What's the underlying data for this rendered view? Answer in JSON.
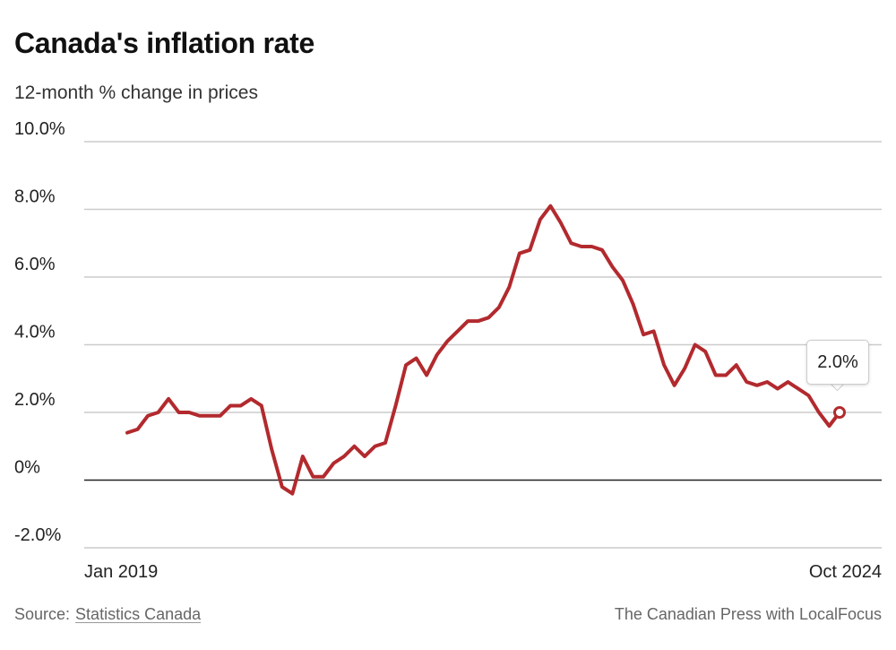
{
  "header": {
    "title": "Canada's inflation rate",
    "subtitle": "12-month % change in prices"
  },
  "footer": {
    "source_label": "Source:",
    "source_name": "Statistics Canada",
    "credit": "The Canadian Press with LocalFocus"
  },
  "colors": {
    "line": "#b22a2e",
    "grid": "#cccccc",
    "zero_line": "#222222",
    "text": "#222222"
  },
  "chart_data": {
    "type": "line",
    "title": "Canada's inflation rate",
    "subtitle": "12-month % change in prices",
    "xlabel": "",
    "ylabel": "",
    "x_tick_labels": [
      "Jan 2019",
      "Oct 2024"
    ],
    "y_ticks": [
      {
        "value": -2,
        "label": "-2.0%"
      },
      {
        "value": 0,
        "label": "0%"
      },
      {
        "value": 2,
        "label": "2.0%"
      },
      {
        "value": 4,
        "label": "4.0%"
      },
      {
        "value": 6,
        "label": "6.0%"
      },
      {
        "value": 8,
        "label": "8.0%"
      },
      {
        "value": 10,
        "label": "10.0%"
      }
    ],
    "ylim": [
      -2,
      10
    ],
    "grid": true,
    "annotation": {
      "label": "2.0%",
      "x": "Oct 2024",
      "value": 2.0
    },
    "series": [
      {
        "x": [
          "Jan 2019",
          "Feb 2019",
          "Mar 2019",
          "Apr 2019",
          "May 2019",
          "Jun 2019",
          "Jul 2019",
          "Aug 2019",
          "Sep 2019",
          "Oct 2019",
          "Nov 2019",
          "Dec 2019",
          "Jan 2020",
          "Feb 2020",
          "Mar 2020",
          "Apr 2020",
          "May 2020",
          "Jun 2020",
          "Jul 2020",
          "Aug 2020",
          "Sep 2020",
          "Oct 2020",
          "Nov 2020",
          "Dec 2020",
          "Jan 2021",
          "Feb 2021",
          "Mar 2021",
          "Apr 2021",
          "May 2021",
          "Jun 2021",
          "Jul 2021",
          "Aug 2021",
          "Sep 2021",
          "Oct 2021",
          "Nov 2021",
          "Dec 2021",
          "Jan 2022",
          "Feb 2022",
          "Mar 2022",
          "Apr 2022",
          "May 2022",
          "Jun 2022",
          "Jul 2022",
          "Aug 2022",
          "Sep 2022",
          "Oct 2022",
          "Nov 2022",
          "Dec 2022",
          "Jan 2023",
          "Feb 2023",
          "Mar 2023",
          "Apr 2023",
          "May 2023",
          "Jun 2023",
          "Jul 2023",
          "Aug 2023",
          "Sep 2023",
          "Oct 2023",
          "Nov 2023",
          "Dec 2023",
          "Jan 2024",
          "Feb 2024",
          "Mar 2024",
          "Apr 2024",
          "May 2024",
          "Jun 2024",
          "Jul 2024",
          "Aug 2024",
          "Sep 2024",
          "Oct 2024"
        ],
        "values": [
          1.4,
          1.5,
          1.9,
          2.0,
          2.4,
          2.0,
          2.0,
          1.9,
          1.9,
          1.9,
          2.2,
          2.2,
          2.4,
          2.2,
          0.9,
          -0.2,
          -0.4,
          0.7,
          0.1,
          0.1,
          0.5,
          0.7,
          1.0,
          0.7,
          1.0,
          1.1,
          2.2,
          3.4,
          3.6,
          3.1,
          3.7,
          4.1,
          4.4,
          4.7,
          4.7,
          4.8,
          5.1,
          5.7,
          6.7,
          6.8,
          7.7,
          8.1,
          7.6,
          7.0,
          6.9,
          6.9,
          6.8,
          6.3,
          5.9,
          5.2,
          4.3,
          4.4,
          3.4,
          2.8,
          3.3,
          4.0,
          3.8,
          3.1,
          3.1,
          3.4,
          2.9,
          2.8,
          2.9,
          2.7,
          2.9,
          2.7,
          2.5,
          2.0,
          1.6,
          2.0
        ]
      }
    ]
  }
}
